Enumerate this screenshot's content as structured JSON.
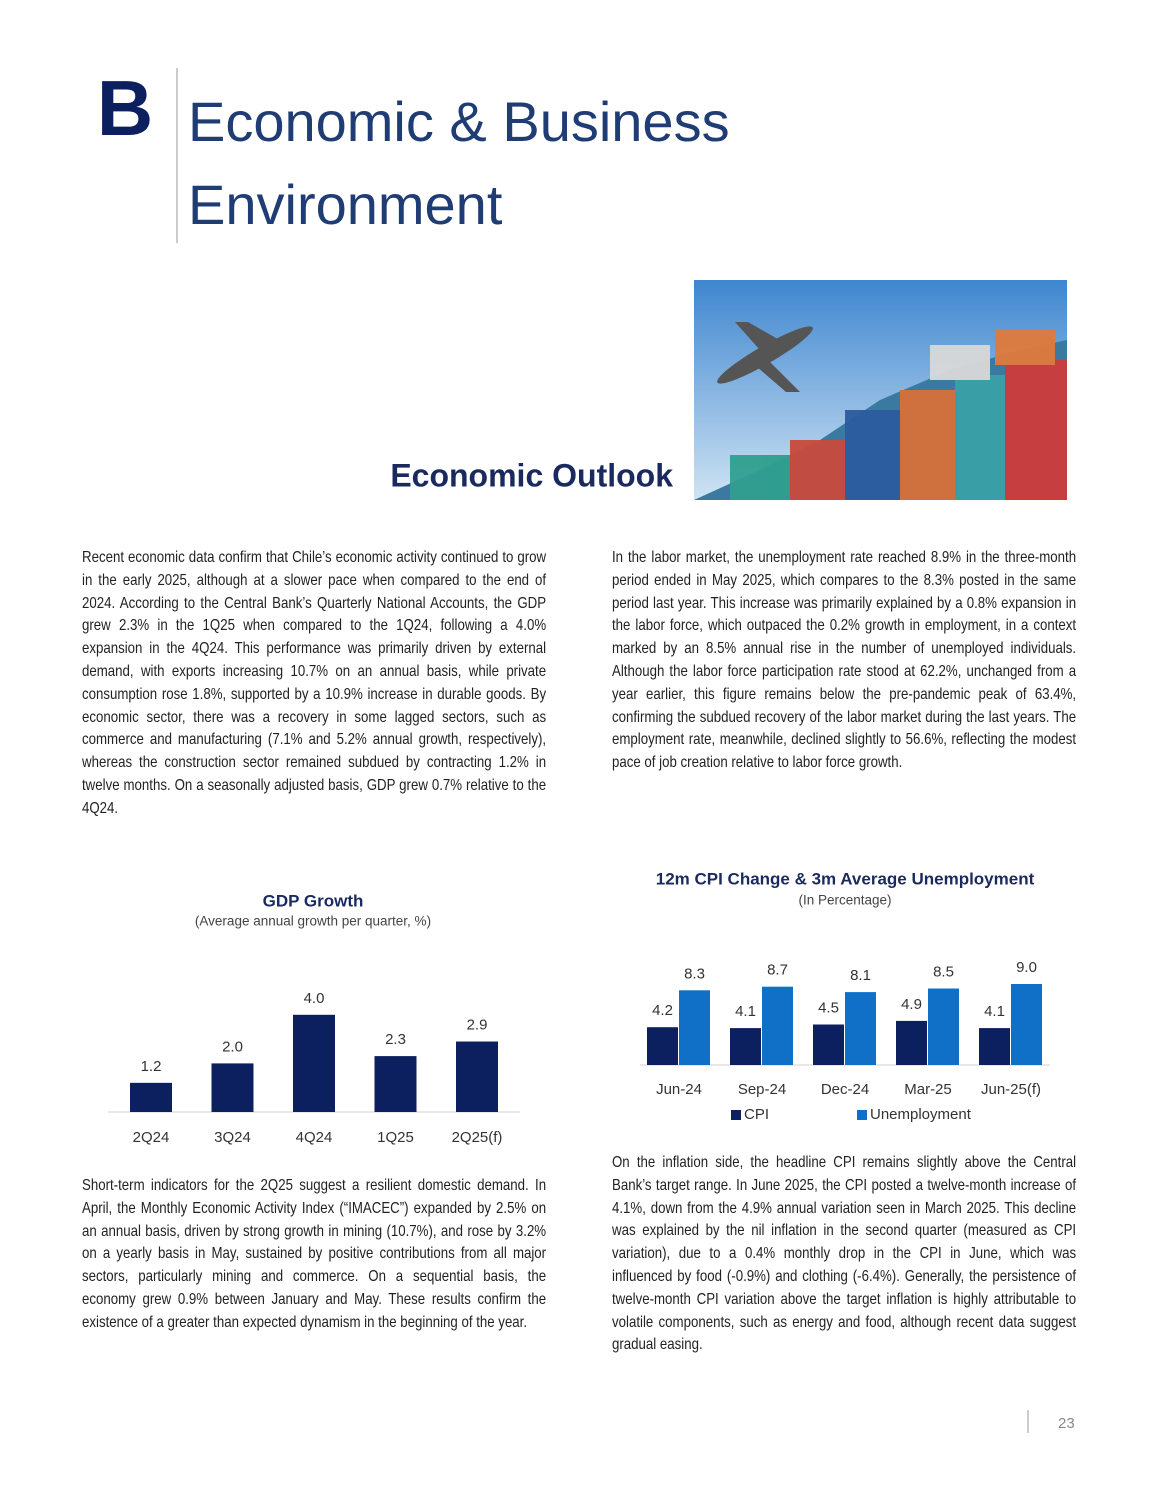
{
  "header": {
    "logo": "B",
    "title": "Economic & Business Environment"
  },
  "section_title": "Economic Outlook",
  "paragraphs": [
    "Recent economic data confirm that Chile’s economic activity continued to grow in the early 2025, although at a slower pace when compared to the end of 2024. According to the Central Bank’s Quarterly National Accounts, the GDP grew 2.3% in the 1Q25 when compared to the 1Q24, following a 4.0% expansion in the 4Q24. This performance was primarily driven by external demand, with exports increasing 10.7% on an annual basis, while private consumption rose 1.8%, supported by a 10.9% increase in durable goods. By economic sector, there was a recovery in some lagged sectors, such as commerce and manufacturing (7.1% and 5.2% annual growth, respectively), whereas the construction sector remained subdued by contracting 1.2% in twelve months. On a seasonally adjusted basis, GDP grew 0.7% relative to the 4Q24.",
    "In the labor market, the unemployment rate reached 8.9% in the three-month period ended in May 2025, which compares to the 8.3% posted in the same period last year. This increase was primarily explained by a 0.8% expansion in the labor force, which outpaced the 0.2% growth in employment, in a context marked by an 8.5% annual rise in the number of unemployed individuals. Although the labor force participation rate stood at 62.2%, unchanged from a year earlier, this figure remains below the pre-pandemic peak of 63.4%, confirming the subdued recovery of the labor market during the last years. The employment rate, meanwhile, declined slightly to 56.6%, reflecting the modest pace of job creation relative to labor force growth.",
    "Short-term indicators for the 2Q25 suggest a resilient domestic demand. In April, the Monthly Economic Activity Index (“IMACEC”) expanded by 2.5% on an annual basis, driven by strong growth in mining (10.7%), and rose by 3.2% on a yearly basis in May, sustained by positive contributions from all major sectors, particularly mining and commerce. On a sequential basis, the economy grew 0.9% between January and May. These results confirm the existence of a greater than expected dynamism in the beginning of the year.",
    "On the inflation side, the headline CPI remains slightly above the Central Bank’s target range. In June 2025, the CPI posted a twelve-month increase of 4.1%, down from the 4.9% annual variation seen in March 2025. This decline was explained by the nil inflation in the second quarter (measured as CPI variation), due to a 0.4% monthly drop in the CPI in June, which was influenced by food (-0.9%) and clothing (-6.4%). Generally, the persistence of twelve-month CPI variation above the target inflation is highly attributable to volatile components, such as energy and food, although recent data suggest gradual easing."
  ],
  "page_number": "23",
  "chart_data": [
    {
      "type": "bar",
      "title": "GDP Growth",
      "subtitle": "(Average annual growth per quarter, %)",
      "categories": [
        "2Q24",
        "3Q24",
        "4Q24",
        "1Q25",
        "2Q25(f)"
      ],
      "values": [
        1.2,
        2.0,
        4.0,
        2.3,
        2.9
      ],
      "value_labels": [
        "1.2",
        "2.0",
        "4.0",
        "2.3",
        "2.9"
      ],
      "color": "#0c1f5e"
    },
    {
      "type": "bar",
      "title": "12m CPI Change & 3m Average Unemployment",
      "subtitle": "(In Percentage)",
      "categories": [
        "Jun-24",
        "Sep-24",
        "Dec-24",
        "Mar-25",
        "Jun-25(f)"
      ],
      "series": [
        {
          "name": "CPI",
          "color": "#0c1f5e",
          "values": [
            4.2,
            4.1,
            4.5,
            4.9,
            4.1
          ],
          "value_labels": [
            "4.2",
            "4.1",
            "4.5",
            "4.9",
            "4.1"
          ]
        },
        {
          "name": "Unemployment",
          "color": "#1070c8",
          "values": [
            8.3,
            8.7,
            8.1,
            8.5,
            9.0
          ],
          "value_labels": [
            "8.3",
            "8.7",
            "8.1",
            "8.5",
            "9.0"
          ]
        }
      ],
      "legend": "bottom"
    }
  ]
}
